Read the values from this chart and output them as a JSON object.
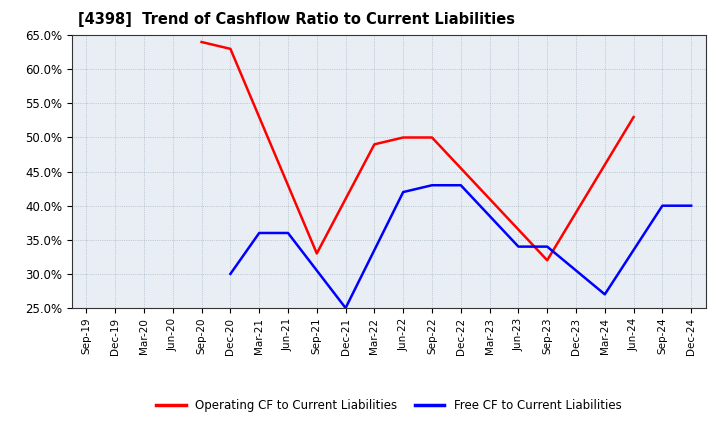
{
  "title": "[4398]  Trend of Cashflow Ratio to Current Liabilities",
  "x_labels": [
    "Sep-19",
    "Dec-19",
    "Mar-20",
    "Jun-20",
    "Sep-20",
    "Dec-20",
    "Mar-21",
    "Jun-21",
    "Sep-21",
    "Dec-21",
    "Mar-22",
    "Jun-22",
    "Sep-22",
    "Dec-22",
    "Mar-23",
    "Jun-23",
    "Sep-23",
    "Dec-23",
    "Mar-24",
    "Jun-24",
    "Sep-24",
    "Dec-24"
  ],
  "op_x": [
    4,
    5,
    8,
    10,
    11,
    12,
    14,
    16,
    19
  ],
  "op_y": [
    0.64,
    0.63,
    0.33,
    0.49,
    0.5,
    0.5,
    0.41,
    0.32,
    0.53
  ],
  "free_x": [
    5,
    6,
    7,
    9,
    11,
    12,
    13,
    15,
    16,
    18,
    20,
    21
  ],
  "free_y": [
    0.3,
    0.36,
    0.36,
    0.25,
    0.42,
    0.43,
    0.43,
    0.34,
    0.34,
    0.27,
    0.4,
    0.4
  ],
  "ylim": [
    0.25,
    0.65
  ],
  "yticks": [
    0.25,
    0.3,
    0.35,
    0.4,
    0.45,
    0.5,
    0.55,
    0.6,
    0.65
  ],
  "operating_color": "#FF0000",
  "free_color": "#0000FF",
  "background_color": "#FFFFFF",
  "plot_bg_color": "#E8EEF4",
  "grid_color": "#8899AA",
  "legend_labels": [
    "Operating CF to Current Liabilities",
    "Free CF to Current Liabilities"
  ]
}
